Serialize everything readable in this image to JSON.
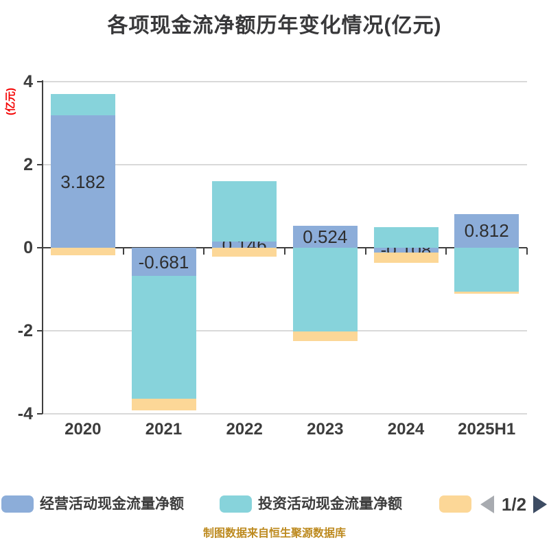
{
  "title": "各项现金流净额历年变化情况(亿元)",
  "y_axis_label": "(亿元)",
  "y_axis_label_color": "#f40000",
  "footer": "制图数据来自恒生聚源数据库",
  "footer_color": "#bd8a1f",
  "pagination": {
    "label": "1/2",
    "prev_color": "#a8abb0",
    "next_color": "#3d4c63"
  },
  "legend": [
    {
      "name": "经营活动现金流量净额",
      "color": "#8cadd9"
    },
    {
      "name": "投资活动现金流量净额",
      "color": "#87d3db"
    },
    {
      "name": "",
      "color": "#fcd797"
    }
  ],
  "chart_data": {
    "type": "bar",
    "stacked": true,
    "title": "各项现金流净额历年变化情况(亿元)",
    "ylabel": "(亿元)",
    "ylim": [
      -4,
      4
    ],
    "yticks": [
      4,
      2,
      0,
      -2,
      -4
    ],
    "grid": true,
    "legend_position": "bottom",
    "categories": [
      "2020",
      "2021",
      "2022",
      "2023",
      "2024",
      "2025H1"
    ],
    "series": [
      {
        "name": "经营活动现金流量净额",
        "color": "#8cadd9",
        "values": [
          3.182,
          -0.681,
          0.146,
          0.524,
          -0.108,
          0.812
        ],
        "data_labels": [
          "3.182",
          "-0.681",
          "0.146",
          "0.524",
          "-0.108",
          "0.812"
        ]
      },
      {
        "name": "",
        "color": "#87d3db",
        "values": [
          0.52,
          -2.96,
          1.46,
          -2.02,
          0.5,
          -1.06
        ],
        "estimated": true
      },
      {
        "name": "",
        "color": "#fcd797",
        "values": [
          -0.18,
          -0.28,
          -0.22,
          -0.23,
          -0.25,
          -0.04
        ],
        "estimated": true
      }
    ]
  }
}
